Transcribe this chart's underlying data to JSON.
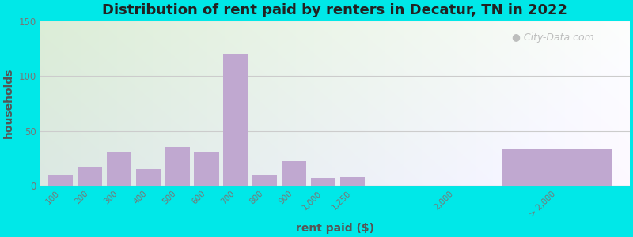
{
  "title": "Distribution of rent paid by renters in Decatur, TN in 2022",
  "xlabel": "rent paid ($)",
  "ylabel": "households",
  "bar_color": "#c0a8d0",
  "background_outer": "#00e8e8",
  "ylim": [
    0,
    150
  ],
  "yticks": [
    0,
    50,
    100,
    150
  ],
  "categories": [
    "100",
    "200",
    "300",
    "400",
    "500",
    "600",
    "700",
    "800",
    "900",
    "1,000",
    "1,250",
    "2,000",
    "> 2,000"
  ],
  "values": [
    10,
    17,
    30,
    15,
    35,
    30,
    120,
    10,
    22,
    7,
    8,
    0,
    34
  ],
  "watermark": "City-Data.com",
  "title_color": "#222222",
  "title_fontsize": 13,
  "axis_label_color": "#555555",
  "tick_color": "#777777",
  "grid_color": "#cccccc"
}
